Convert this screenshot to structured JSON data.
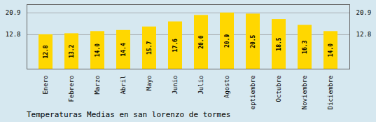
{
  "chart_data": {
    "type": "bar",
    "title": "Temperaturas Medias en san lorenzo de tormes",
    "categories": [
      "Enero",
      "Febrero",
      "Marzo",
      "Abril",
      "Mayo",
      "Junio",
      "Julio",
      "Agosto",
      "Septiembre",
      "Octubre",
      "Noviembre",
      "Diciembre"
    ],
    "values": [
      12.8,
      13.2,
      14.0,
      14.4,
      15.7,
      17.6,
      20.0,
      20.9,
      20.5,
      18.5,
      16.3,
      14.0
    ],
    "color": "#FFD700",
    "ylim": [
      0.0,
      24.0
    ],
    "yticks": [
      12.8,
      20.9
    ],
    "grid": true,
    "data_labels": true
  }
}
